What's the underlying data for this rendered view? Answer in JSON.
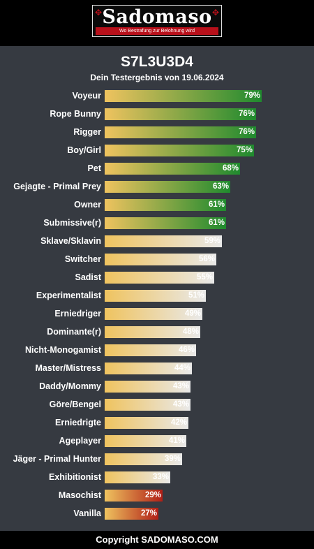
{
  "header": {
    "logo_text": "Sadomaso",
    "logo_tagline": "Wo Bestrafung zur Belohnung wird"
  },
  "footer": {
    "copyright": "Copyright SADOMASO.COM"
  },
  "colors": {
    "bar_start": "#efc35f",
    "high_end": "#1f8a2e",
    "mid_end": "#e9e9e9",
    "low_end": "#b01e16"
  },
  "chart_data": {
    "type": "bar",
    "orientation": "horizontal",
    "title": "S7L3U3D4",
    "subtitle": "Dein Testergebnis von 19.06.2024",
    "xlim": [
      0,
      100
    ],
    "grid": false,
    "categories": [
      "Voyeur",
      "Rope Bunny",
      "Rigger",
      "Boy/Girl",
      "Pet",
      "Gejagte - Primal Prey",
      "Owner",
      "Submissive(r)",
      "Sklave/Sklavin",
      "Switcher",
      "Sadist",
      "Experimentalist",
      "Erniedriger",
      "Dominante(r)",
      "Nicht-Monogamist",
      "Master/Mistress",
      "Daddy/Mommy",
      "Göre/Bengel",
      "Erniedrigte",
      "Ageplayer",
      "Jäger - Primal Hunter",
      "Exhibitionist",
      "Masochist",
      "Vanilla"
    ],
    "values": [
      79,
      76,
      76,
      75,
      68,
      63,
      61,
      61,
      59,
      56,
      55,
      51,
      49,
      48,
      46,
      44,
      43,
      43,
      42,
      41,
      39,
      33,
      29,
      27
    ],
    "value_labels": [
      "79%",
      "76%",
      "76%",
      "75%",
      "68%",
      "63%",
      "61%",
      "61%",
      "59%",
      "56%",
      "55%",
      "51%",
      "49%",
      "48%",
      "46%",
      "44%",
      "43%",
      "43%",
      "42%",
      "41%",
      "39%",
      "33%",
      "29%",
      "27%"
    ]
  }
}
